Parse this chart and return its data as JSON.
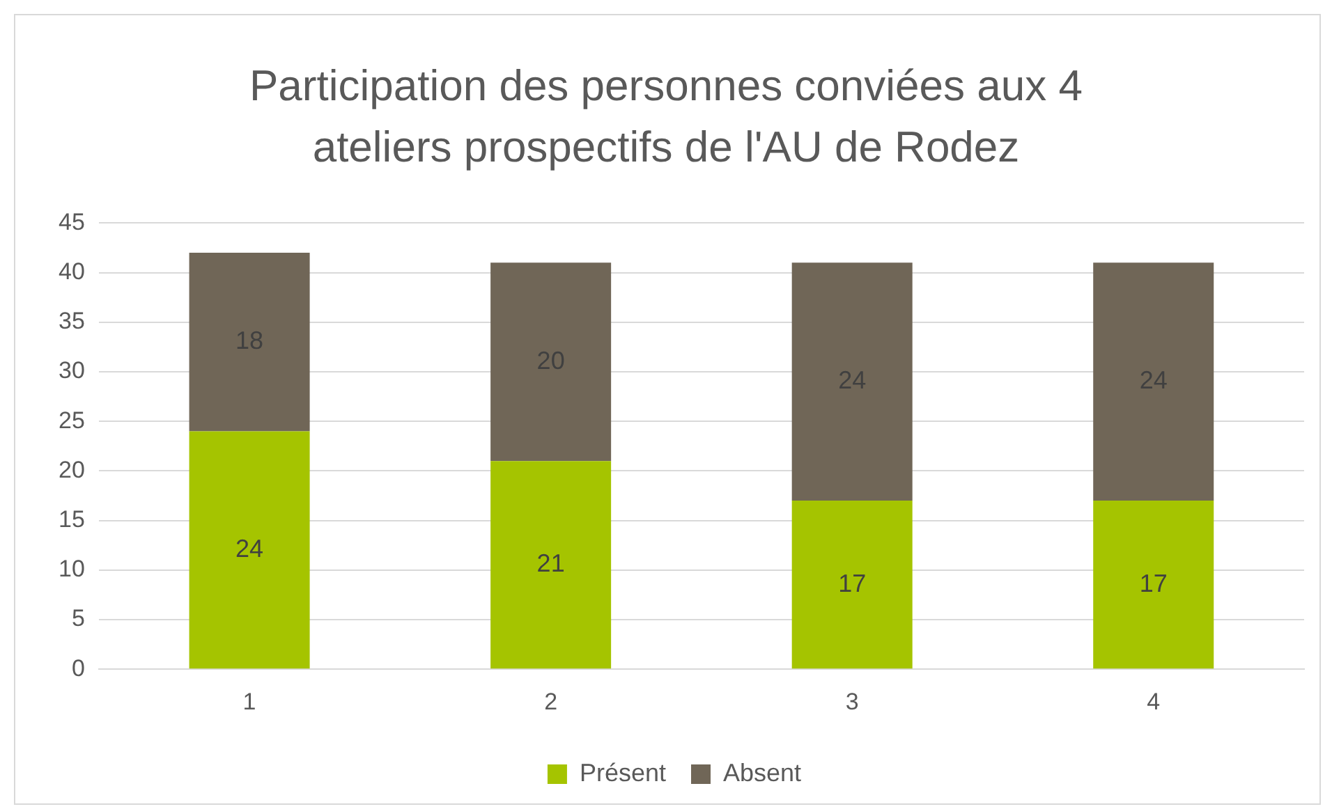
{
  "chart_data": {
    "type": "bar",
    "title": "Participation des personnes conviées aux 4 ateliers prospectifs de l'AU de Rodez",
    "categories": [
      "1",
      "2",
      "3",
      "4"
    ],
    "series": [
      {
        "name": "Présent",
        "color": "#a5c400",
        "values": [
          24,
          21,
          17,
          17
        ]
      },
      {
        "name": "Absent",
        "color": "#706657",
        "values": [
          18,
          20,
          24,
          24
        ]
      }
    ],
    "stacked": true,
    "ylim": [
      0,
      45
    ],
    "yticks": [
      0,
      5,
      10,
      15,
      20,
      25,
      30,
      35,
      40,
      45
    ],
    "grid": "y",
    "legend": "bottom",
    "data_labels": true
  }
}
